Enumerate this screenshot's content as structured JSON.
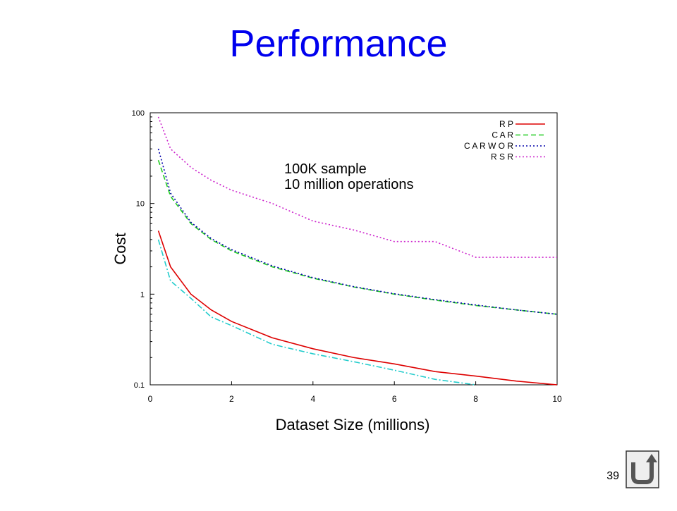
{
  "slide_title": "Performance",
  "page_number": "39",
  "chart_data": {
    "type": "line",
    "x_label": "Dataset Size (millions)",
    "y_label": "Cost",
    "annotations": [
      "100K sample",
      "10 million operations"
    ],
    "x": [
      0.2,
      0.5,
      1,
      1.5,
      2,
      3,
      4,
      5,
      6,
      7,
      8,
      9,
      10
    ],
    "series": [
      {
        "name": "R P",
        "color": "#dd0000",
        "dash": "solid",
        "values": [
          5,
          2,
          1,
          0.67,
          0.5,
          0.33,
          0.25,
          0.2,
          0.17,
          0.14,
          0.125,
          0.11,
          0.1
        ]
      },
      {
        "name": "C A R",
        "color": "#22cc22",
        "dash": "dashed",
        "values": [
          30,
          12,
          6,
          4,
          3,
          2,
          1.5,
          1.2,
          1,
          0.86,
          0.75,
          0.67,
          0.6
        ]
      },
      {
        "name": "C A R W O R",
        "color": "#0000aa",
        "dash": "dotted",
        "values": [
          40,
          13,
          6.2,
          4.1,
          3.1,
          2.05,
          1.52,
          1.21,
          1.01,
          0.87,
          0.76,
          0.67,
          0.6
        ]
      },
      {
        "name": "R S R",
        "color": "#cc22cc",
        "dash": "dotted",
        "values": [
          90,
          40,
          25,
          18,
          14,
          10,
          6.4,
          5.1,
          3.8,
          3.8,
          2.55,
          2.55,
          2.55
        ]
      },
      {
        "color": "#22cccc",
        "dash": "dashdot",
        "values": [
          4,
          1.4,
          0.9,
          0.56,
          0.45,
          0.28,
          0.22,
          0.18,
          0.145,
          0.115,
          0.1,
          null,
          null
        ]
      }
    ],
    "xlim": [
      0,
      10
    ],
    "xticks": [
      0,
      2,
      4,
      6,
      8,
      10
    ],
    "ylim": [
      0.1,
      100
    ],
    "yticks": [
      0.1,
      1,
      10,
      100
    ],
    "log_y": true,
    "legend": "top-right"
  }
}
